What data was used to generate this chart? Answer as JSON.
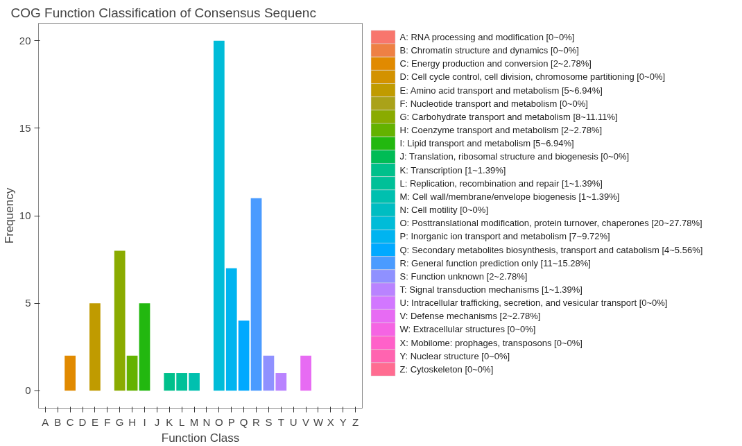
{
  "chart_data": {
    "type": "bar",
    "title": "COG Function Classification of Consensus Sequenc",
    "xlabel": "Function Class",
    "ylabel": "Frequency",
    "categories": [
      "A",
      "B",
      "C",
      "D",
      "E",
      "F",
      "G",
      "H",
      "I",
      "J",
      "K",
      "L",
      "M",
      "N",
      "O",
      "P",
      "Q",
      "R",
      "S",
      "T",
      "U",
      "V",
      "W",
      "X",
      "Y",
      "Z"
    ],
    "ylim": [
      -1,
      21
    ],
    "yticks": [
      0,
      5,
      10,
      15,
      20
    ],
    "grid": false,
    "legend": "right",
    "series": [
      {
        "name": "A: RNA processing and modification [0~0%]",
        "color": "#f8766d",
        "x": [
          "A"
        ],
        "values": [
          0
        ]
      },
      {
        "name": "B: Chromatin structure and dynamics [0~0%]",
        "color": "#ee8044",
        "x": [
          "B"
        ],
        "values": [
          0
        ]
      },
      {
        "name": "C: Energy production and conversion [2~2.78%]",
        "color": "#e18a00",
        "x": [
          "C"
        ],
        "values": [
          2
        ]
      },
      {
        "name": "D: Cell cycle control, cell division, chromosome partitioning [0~0%]",
        "color": "#d39200",
        "x": [
          "D"
        ],
        "values": [
          0
        ]
      },
      {
        "name": "E: Amino acid transport and metabolism [5~6.94%]",
        "color": "#c09b00",
        "x": [
          "E"
        ],
        "values": [
          5
        ]
      },
      {
        "name": "F: Nucleotide transport and metabolism [0~0%]",
        "color": "#aaa219",
        "x": [
          "F"
        ],
        "values": [
          0
        ]
      },
      {
        "name": "G: Carbohydrate transport and metabolism [8~11.11%]",
        "color": "#8aab00",
        "x": [
          "G"
        ],
        "values": [
          8
        ]
      },
      {
        "name": "H: Coenzyme transport and metabolism [2~2.78%]",
        "color": "#64b200",
        "x": [
          "H"
        ],
        "values": [
          2
        ]
      },
      {
        "name": "I: Lipid transport and metabolism [5~6.94%]",
        "color": "#22b80f",
        "x": [
          "I"
        ],
        "values": [
          5
        ]
      },
      {
        "name": "J: Translation, ribosomal structure and biogenesis [0~0%]",
        "color": "#00bc55",
        "x": [
          "J"
        ],
        "values": [
          0
        ]
      },
      {
        "name": "K: Transcription [1~1.39%]",
        "color": "#00c08b",
        "x": [
          "K"
        ],
        "values": [
          1
        ]
      },
      {
        "name": "L: Replication, recombination and repair [1~1.39%]",
        "color": "#00c098",
        "x": [
          "L"
        ],
        "values": [
          1
        ]
      },
      {
        "name": "M: Cell wall/membrane/envelope biogenesis [1~1.39%]",
        "color": "#00c0af",
        "x": [
          "M"
        ],
        "values": [
          1
        ]
      },
      {
        "name": "N: Cell motility [0~0%]",
        "color": "#00bdc2",
        "x": [
          "N"
        ],
        "values": [
          0
        ]
      },
      {
        "name": "O: Posttranslational modification, protein turnover, chaperones [20~27.78%]",
        "color": "#00bcd8",
        "x": [
          "O"
        ],
        "values": [
          20
        ]
      },
      {
        "name": "P: Inorganic ion transport and metabolism [7~9.72%]",
        "color": "#00b4f0",
        "x": [
          "P"
        ],
        "values": [
          7
        ]
      },
      {
        "name": "Q: Secondary metabolites biosynthesis, transport and catabolism [4~5.56%]",
        "color": "#00a9ff",
        "x": [
          "Q"
        ],
        "values": [
          4
        ]
      },
      {
        "name": "R: General function prediction only [11~15.28%]",
        "color": "#4a9bff",
        "x": [
          "R"
        ],
        "values": [
          11
        ]
      },
      {
        "name": "S: Function unknown [2~2.78%]",
        "color": "#8f91ff",
        "x": [
          "S"
        ],
        "values": [
          2
        ]
      },
      {
        "name": "T: Signal transduction mechanisms [1~1.39%]",
        "color": "#b983ff",
        "x": [
          "T"
        ],
        "values": [
          1
        ]
      },
      {
        "name": "U: Intracellular trafficking, secretion, and vesicular transport [0~0%]",
        "color": "#d277ff",
        "x": [
          "U"
        ],
        "values": [
          0
        ]
      },
      {
        "name": "V: Defense mechanisms [2~2.78%]",
        "color": "#e76bf3",
        "x": [
          "V"
        ],
        "values": [
          2
        ]
      },
      {
        "name": "W: Extracellular structures [0~0%]",
        "color": "#f564e3",
        "x": [
          "W"
        ],
        "values": [
          0
        ]
      },
      {
        "name": "X: Mobilome: prophages, transposons [0~0%]",
        "color": "#ff61c9",
        "x": [
          "X"
        ],
        "values": [
          0
        ]
      },
      {
        "name": "Y: Nuclear structure [0~0%]",
        "color": "#ff64b0",
        "x": [
          "Y"
        ],
        "values": [
          0
        ]
      },
      {
        "name": "Z: Cytoskeleton [0~0%]",
        "color": "#ff6c91",
        "x": [
          "Z"
        ],
        "values": [
          0
        ]
      }
    ]
  }
}
